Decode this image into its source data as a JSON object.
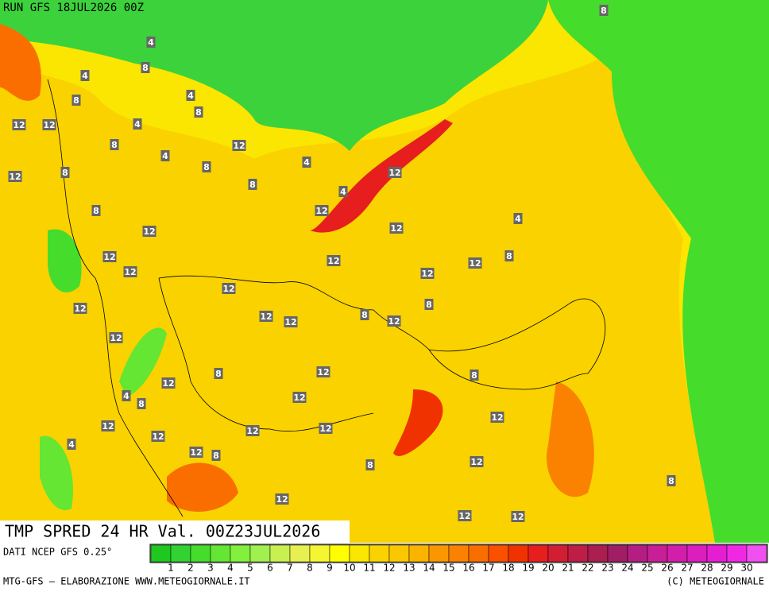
{
  "header": {
    "run": "RUN GFS 18JUL2026 00Z"
  },
  "map": {
    "title": "TMP SPRED 24 HR Val. 00Z23JUL2026",
    "contour_labels": [
      "8",
      "4",
      "8",
      "4",
      "8",
      "4",
      "8",
      "12",
      "12",
      "4",
      "8",
      "8",
      "12",
      "12",
      "4",
      "12",
      "8",
      "4",
      "12",
      "8",
      "12",
      "12",
      "8",
      "4",
      "12",
      "12",
      "12",
      "8",
      "12",
      "12",
      "12",
      "12",
      "12",
      "12",
      "8",
      "8",
      "12",
      "12",
      "8",
      "4",
      "12",
      "8",
      "12",
      "4",
      "12",
      "12",
      "8",
      "12",
      "12",
      "12",
      "12",
      "12",
      "8",
      "12",
      "8",
      "4",
      "12",
      "12",
      "12",
      "8"
    ]
  },
  "colorbar": {
    "source": "DATI NCEP GFS 0.25°",
    "values": [
      1,
      2,
      3,
      4,
      5,
      6,
      7,
      8,
      9,
      10,
      11,
      12,
      13,
      14,
      15,
      16,
      17,
      18,
      19,
      20,
      21,
      22,
      23,
      24,
      25,
      26,
      27,
      28,
      29,
      30
    ],
    "colors": [
      "#1ec81e",
      "#32d232",
      "#46dc2c",
      "#64e632",
      "#82f03c",
      "#a0f050",
      "#c8f050",
      "#e6f050",
      "#f5f532",
      "#ffff00",
      "#fae600",
      "#fad200",
      "#fac800",
      "#fab400",
      "#fa9600",
      "#fa8200",
      "#fa6e00",
      "#fa5000",
      "#f03200",
      "#e61e1e",
      "#d21e32",
      "#be1e46",
      "#aa1e50",
      "#a01e64",
      "#b41e82",
      "#c81e96",
      "#d21eaa",
      "#dc1ebe",
      "#e61ed2",
      "#f028e6",
      "#f050f0"
    ]
  },
  "footer": {
    "left": "MTG-GFS — ELABORAZIONE WWW.METEOGIORNALE.IT",
    "right": "(C) METEOGIORNALE"
  }
}
